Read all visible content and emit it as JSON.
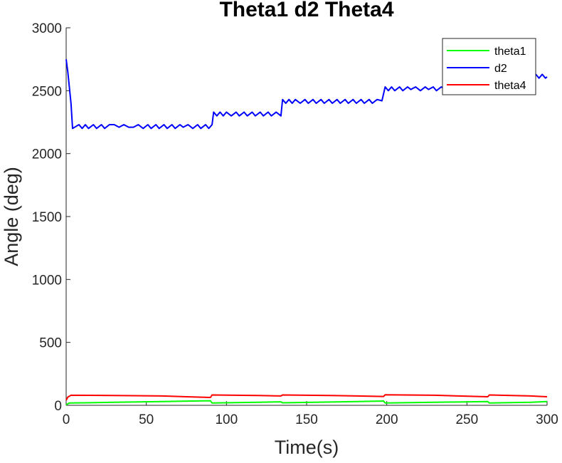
{
  "chart_data": {
    "type": "line",
    "title": "Theta1 d2 Theta4",
    "xlabel": "Time(s)",
    "ylabel": "Angle (deg)",
    "xlim": [
      0,
      300
    ],
    "ylim": [
      0,
      3000
    ],
    "xticks": [
      0,
      50,
      100,
      150,
      200,
      250,
      300
    ],
    "yticks": [
      0,
      500,
      1000,
      1500,
      2000,
      2500,
      3000
    ],
    "grid": false,
    "legend_position": "top-right",
    "series": [
      {
        "name": "theta1",
        "color": "#00ff00",
        "points": [
          [
            0,
            5
          ],
          [
            2,
            18
          ],
          [
            30,
            24
          ],
          [
            60,
            30
          ],
          [
            90,
            36
          ],
          [
            91,
            18
          ],
          [
            120,
            24
          ],
          [
            134,
            28
          ],
          [
            135,
            20
          ],
          [
            165,
            26
          ],
          [
            198,
            34
          ],
          [
            199,
            18
          ],
          [
            230,
            24
          ],
          [
            263,
            30
          ],
          [
            264,
            18
          ],
          [
            290,
            24
          ],
          [
            300,
            30
          ]
        ]
      },
      {
        "name": "d2",
        "color": "#0000ff",
        "points": [
          [
            0,
            2750
          ],
          [
            1,
            2650
          ],
          [
            3,
            2400
          ],
          [
            4,
            2200
          ],
          [
            8,
            2230
          ],
          [
            10,
            2200
          ],
          [
            12,
            2230
          ],
          [
            14,
            2200
          ],
          [
            17,
            2230
          ],
          [
            19,
            2200
          ],
          [
            22,
            2230
          ],
          [
            24,
            2200
          ],
          [
            27,
            2230
          ],
          [
            30,
            2230
          ],
          [
            33,
            2210
          ],
          [
            36,
            2230
          ],
          [
            39,
            2210
          ],
          [
            42,
            2210
          ],
          [
            45,
            2230
          ],
          [
            48,
            2200
          ],
          [
            51,
            2230
          ],
          [
            53,
            2200
          ],
          [
            56,
            2230
          ],
          [
            58,
            2200
          ],
          [
            61,
            2230
          ],
          [
            63,
            2200
          ],
          [
            66,
            2230
          ],
          [
            68,
            2200
          ],
          [
            71,
            2230
          ],
          [
            73,
            2210
          ],
          [
            76,
            2230
          ],
          [
            79,
            2200
          ],
          [
            82,
            2230
          ],
          [
            84,
            2200
          ],
          [
            87,
            2230
          ],
          [
            89,
            2200
          ],
          [
            91,
            2230
          ],
          [
            92,
            2330
          ],
          [
            94,
            2300
          ],
          [
            96,
            2330
          ],
          [
            98,
            2300
          ],
          [
            100,
            2330
          ],
          [
            103,
            2300
          ],
          [
            106,
            2330
          ],
          [
            108,
            2300
          ],
          [
            111,
            2330
          ],
          [
            113,
            2300
          ],
          [
            116,
            2330
          ],
          [
            118,
            2300
          ],
          [
            121,
            2330
          ],
          [
            123,
            2300
          ],
          [
            126,
            2330
          ],
          [
            128,
            2300
          ],
          [
            131,
            2330
          ],
          [
            134,
            2300
          ],
          [
            135,
            2430
          ],
          [
            137,
            2400
          ],
          [
            139,
            2430
          ],
          [
            141,
            2400
          ],
          [
            143,
            2430
          ],
          [
            146,
            2400
          ],
          [
            149,
            2430
          ],
          [
            151,
            2400
          ],
          [
            154,
            2430
          ],
          [
            156,
            2400
          ],
          [
            159,
            2430
          ],
          [
            161,
            2400
          ],
          [
            164,
            2430
          ],
          [
            166,
            2400
          ],
          [
            169,
            2430
          ],
          [
            171,
            2400
          ],
          [
            174,
            2430
          ],
          [
            176,
            2400
          ],
          [
            179,
            2430
          ],
          [
            181,
            2400
          ],
          [
            184,
            2430
          ],
          [
            186,
            2400
          ],
          [
            189,
            2430
          ],
          [
            191,
            2400
          ],
          [
            194,
            2430
          ],
          [
            197,
            2420
          ],
          [
            199,
            2530
          ],
          [
            201,
            2500
          ],
          [
            203,
            2530
          ],
          [
            205,
            2500
          ],
          [
            208,
            2530
          ],
          [
            210,
            2500
          ],
          [
            213,
            2530
          ],
          [
            215,
            2510
          ],
          [
            218,
            2530
          ],
          [
            221,
            2500
          ],
          [
            224,
            2530
          ],
          [
            226,
            2510
          ],
          [
            229,
            2530
          ],
          [
            231,
            2500
          ],
          [
            234,
            2530
          ],
          [
            237,
            2510
          ],
          [
            240,
            2530
          ],
          [
            243,
            2500
          ],
          [
            246,
            2530
          ],
          [
            248,
            2500
          ],
          [
            251,
            2530
          ],
          [
            254,
            2500
          ],
          [
            257,
            2530
          ],
          [
            260,
            2510
          ],
          [
            263,
            2530
          ],
          [
            264,
            2630
          ],
          [
            266,
            2600
          ],
          [
            268,
            2630
          ],
          [
            270,
            2600
          ],
          [
            273,
            2630
          ],
          [
            275,
            2600
          ],
          [
            278,
            2630
          ],
          [
            280,
            2600
          ],
          [
            283,
            2630
          ],
          [
            285,
            2600
          ],
          [
            288,
            2630
          ],
          [
            290,
            2600
          ],
          [
            293,
            2630
          ],
          [
            295,
            2600
          ],
          [
            297,
            2630
          ],
          [
            299,
            2600
          ],
          [
            300,
            2610
          ]
        ]
      },
      {
        "name": "theta4",
        "color": "#ff0000",
        "points": [
          [
            0,
            40
          ],
          [
            1,
            65
          ],
          [
            3,
            80
          ],
          [
            30,
            78
          ],
          [
            60,
            74
          ],
          [
            90,
            62
          ],
          [
            91,
            82
          ],
          [
            120,
            78
          ],
          [
            134,
            74
          ],
          [
            135,
            82
          ],
          [
            165,
            78
          ],
          [
            198,
            70
          ],
          [
            199,
            84
          ],
          [
            230,
            80
          ],
          [
            263,
            68
          ],
          [
            264,
            82
          ],
          [
            290,
            74
          ],
          [
            300,
            68
          ]
        ]
      }
    ]
  }
}
